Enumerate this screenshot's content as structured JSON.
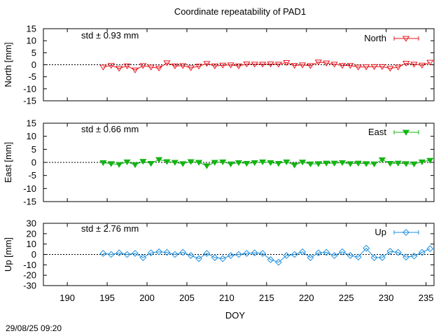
{
  "timestamp": "29/08/25 09:20",
  "chart_data": {
    "type": "line",
    "title": "Coordinate repeatability of PAD1",
    "xlabel": "DOY",
    "xlim": [
      187,
      236
    ],
    "xticks": [
      190,
      195,
      200,
      205,
      210,
      215,
      220,
      225,
      230,
      235
    ],
    "x": [
      194.5,
      195.5,
      196.5,
      197.5,
      198.5,
      199.5,
      200.5,
      201.5,
      202.5,
      203.5,
      204.5,
      205.5,
      206.5,
      207.5,
      208.5,
      209.5,
      210.5,
      211.5,
      212.5,
      213.5,
      214.5,
      215.5,
      216.5,
      217.5,
      218.5,
      219.5,
      220.5,
      221.5,
      222.5,
      223.5,
      224.5,
      225.5,
      226.5,
      227.5,
      228.5,
      229.5,
      230.5,
      231.5,
      232.5,
      233.5,
      234.5,
      235.5
    ],
    "panels": [
      {
        "name": "north",
        "ylabel": "North [mm]",
        "ylim": [
          -15,
          15
        ],
        "yticks": [
          15,
          10,
          5,
          0,
          -5,
          -10,
          -15
        ],
        "std_label": "std ± 0.93 mm",
        "legend": "North",
        "color": "#e8141b",
        "marker": "triangle-down-open",
        "values": [
          -1.0,
          -0.3,
          -1.5,
          -0.5,
          -2.2,
          -0.4,
          -1.0,
          -1.4,
          0.8,
          -0.5,
          -0.4,
          -1.3,
          -0.6,
          0.5,
          -0.5,
          -0.2,
          -0.1,
          -0.5,
          0.3,
          0.2,
          0.2,
          0.3,
          0.2,
          0.9,
          -0.3,
          -0.1,
          -0.4,
          1.1,
          0.7,
          0.2,
          -0.3,
          -0.3,
          -1.0,
          -0.9,
          -0.8,
          -0.8,
          -1.5,
          -1.0,
          0.6,
          0.2,
          -0.2,
          1.0
        ]
      },
      {
        "name": "east",
        "ylabel": "East [mm]",
        "ylim": [
          -15,
          15
        ],
        "yticks": [
          15,
          10,
          5,
          0,
          -5,
          -10,
          -15
        ],
        "std_label": "std ± 0.66 mm",
        "legend": "East",
        "color": "#12b512",
        "marker": "triangle-down-filled",
        "values": [
          -0.1,
          -0.5,
          -0.8,
          0.2,
          -0.9,
          0.4,
          -0.4,
          1.1,
          0.3,
          0.0,
          -0.5,
          0.3,
          0.0,
          -1.3,
          0.0,
          0.2,
          -0.6,
          -0.1,
          -0.4,
          -0.1,
          0.2,
          -0.1,
          -0.4,
          0.2,
          -1.0,
          0.1,
          -0.6,
          -0.5,
          -0.3,
          -0.3,
          -0.1,
          -0.5,
          -0.3,
          -0.5,
          -0.6,
          1.0,
          -0.4,
          -0.3,
          -0.5,
          -0.6,
          0.2,
          0.8
        ]
      },
      {
        "name": "up",
        "ylabel": "Up [mm]",
        "ylim": [
          -30,
          30
        ],
        "yticks": [
          30,
          20,
          10,
          0,
          -10,
          -20,
          -30
        ],
        "std_label": "std ± 2.76 mm",
        "legend": "Up",
        "color": "#1e8fde",
        "marker": "diamond-open",
        "values": [
          1.0,
          0.0,
          1.5,
          0.0,
          1.0,
          -3.0,
          1.5,
          2.5,
          2.0,
          0.0,
          2.0,
          -1.0,
          -4.0,
          1.0,
          -3.0,
          -4.0,
          -1.0,
          0.0,
          1.0,
          1.5,
          1.0,
          -5.0,
          -7.5,
          -1.0,
          0.0,
          2.5,
          -3.0,
          1.5,
          2.0,
          -1.0,
          2.5,
          -1.0,
          -2.5,
          6.0,
          -3.0,
          -3.0,
          3.0,
          2.0,
          -2.5,
          -1.5,
          2.0,
          5.5
        ]
      }
    ]
  }
}
